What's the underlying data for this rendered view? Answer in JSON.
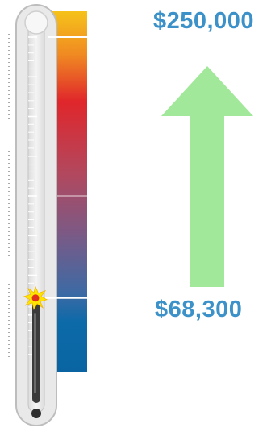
{
  "fundraiser": {
    "goal_amount": "$250,000",
    "raised_amount": "$68,300",
    "progress_fraction": 0.2732
  },
  "colors": {
    "label_blue": "#3c92c8",
    "arrow_green": "#a2e89a",
    "tube_outline": "#c9c9c9",
    "mercury": "#3a3a3a",
    "marker_yellow": "#ffe600",
    "marker_red": "#e0301e"
  },
  "icons": {
    "progress_marker": "starburst-icon",
    "direction": "up-arrow-icon"
  }
}
